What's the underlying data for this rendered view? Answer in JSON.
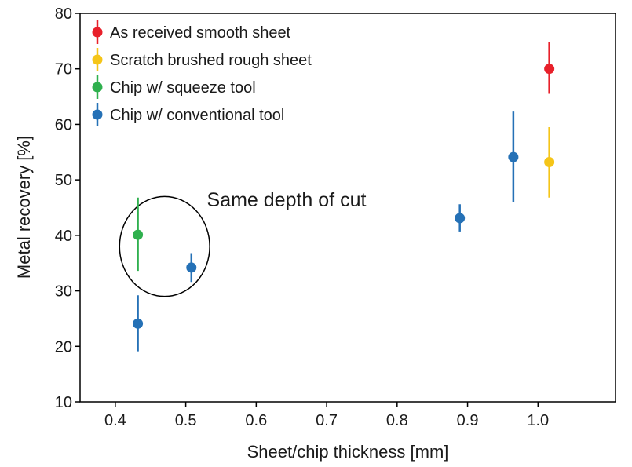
{
  "chart_data": {
    "type": "scatter",
    "title": "",
    "xlabel": "Sheet/chip thickness [mm]",
    "ylabel": "Metal recovery [%]",
    "xlim": [
      0.35,
      1.11
    ],
    "ylim": [
      10,
      80
    ],
    "xticks": [
      0.4,
      0.5,
      0.6,
      0.7,
      0.8,
      0.9,
      1.0
    ],
    "xtick_labels": [
      "0.4",
      "0.5",
      "0.6",
      "0.7",
      "0.8",
      "0.9",
      "1.0"
    ],
    "yticks": [
      10,
      20,
      30,
      40,
      50,
      60,
      70,
      80
    ],
    "ytick_labels": [
      "10",
      "20",
      "30",
      "40",
      "50",
      "60",
      "70",
      "80"
    ],
    "grid": false,
    "legend_position": "top-left",
    "series": [
      {
        "name": "As received smooth sheet",
        "color": "#e8202a",
        "points": [
          {
            "x": 1.016,
            "y": 70,
            "err_low": 65.5,
            "err_high": 74.8
          }
        ]
      },
      {
        "name": "Scratch brushed rough sheet",
        "color": "#f5c518",
        "points": [
          {
            "x": 1.016,
            "y": 53.2,
            "err_low": 46.8,
            "err_high": 59.5
          }
        ]
      },
      {
        "name": "Chip w/ squeeze tool",
        "color": "#2fb04e",
        "points": [
          {
            "x": 0.432,
            "y": 40.1,
            "err_low": 33.6,
            "err_high": 46.8
          }
        ]
      },
      {
        "name": "Chip w/ conventional tool",
        "color": "#2571b6",
        "points": [
          {
            "x": 0.432,
            "y": 24.1,
            "err_low": 19.1,
            "err_high": 29.2
          },
          {
            "x": 0.508,
            "y": 34.2,
            "err_low": 31.6,
            "err_high": 36.8
          },
          {
            "x": 0.889,
            "y": 43.1,
            "err_low": 40.7,
            "err_high": 45.6
          },
          {
            "x": 0.965,
            "y": 54.1,
            "err_low": 46.0,
            "err_high": 62.3
          }
        ]
      }
    ],
    "annotations": [
      {
        "text": "Same depth of cut",
        "x": 0.53,
        "y": 45.2
      }
    ],
    "highlight_ellipse": {
      "center_x": 0.47,
      "center_y": 38.0,
      "radius_x": 0.064,
      "radius_y": 9.0
    }
  }
}
